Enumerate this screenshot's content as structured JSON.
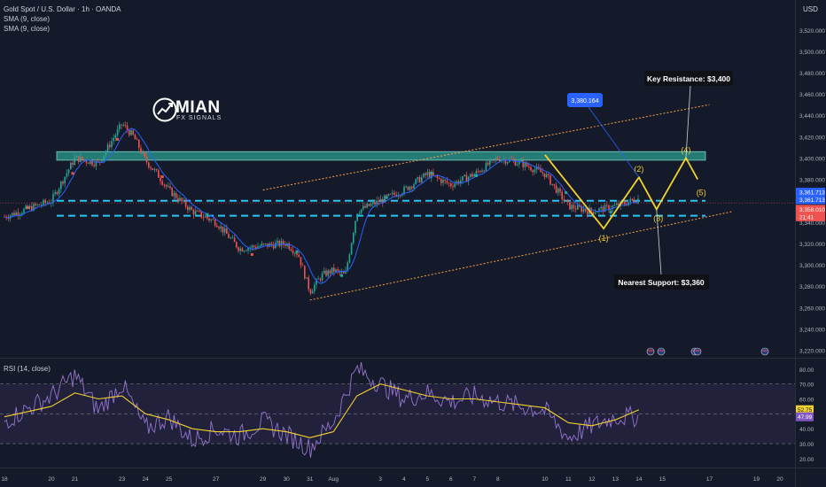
{
  "header": {
    "symbol": "Gold Spot / U.S. Dollar · 1h · OANDA",
    "indicators": [
      "SMA (9, close)",
      "SMA (9, close)"
    ],
    "rsi_label": "RSI (14, close)",
    "currency": "USD"
  },
  "logo": {
    "main": "MIAN",
    "sub": "FX SIGNALS"
  },
  "colors": {
    "background": "#151a2a",
    "up_candle": "#26a69a",
    "down_candle": "#ef5350",
    "sma": "#2962ff",
    "resistance_zone": "#2a9d8f",
    "support_dash": "#29c5f6",
    "channel": "#f5a04a",
    "wave": "#f2d22e",
    "rsi_line": "#9575cd",
    "rsi_ma": "#f2d22e"
  },
  "annotations": {
    "key_resistance": "Key Resistance: $3,400",
    "nearest_support": "Nearest Support: $3,360",
    "price_tag": "3,380.164",
    "waves": [
      "(1)",
      "(2)",
      "(3)",
      "(4)",
      "(5)"
    ]
  },
  "price_badges": [
    "3,361.713",
    "3,361.713",
    "3,358.010",
    "21:41"
  ],
  "rsi_badges": [
    "52.75",
    "47.99"
  ],
  "chart_data": [
    {
      "type": "candlestick",
      "title": "Gold Spot / U.S. Dollar · 1h · OANDA",
      "ylabel": "USD",
      "ylim": [
        3213,
        3548
      ],
      "y_ticks": [
        3520,
        3500,
        3480,
        3460,
        3440,
        3420,
        3400,
        3380,
        3360,
        3340,
        3320,
        3300,
        3280,
        3260,
        3240,
        3220
      ],
      "y_tick_labels": [
        "3,520.000",
        "3,500.000",
        "3,480.000",
        "3,460.000",
        "3,440.000",
        "3,420.000",
        "3,400.000",
        "3,380.000",
        "3,360.000",
        "3,340.000",
        "3,320.000",
        "3,300.000",
        "3,280.000",
        "3,260.000",
        "3,240.000",
        "3,220.000"
      ],
      "x_tick_labels": [
        "18",
        "20",
        "21",
        "23",
        "24",
        "25",
        "27",
        "29",
        "30",
        "31",
        "Aug",
        "3",
        "4",
        "5",
        "6",
        "7",
        "8",
        "10",
        "11",
        "12",
        "13",
        "14",
        "15",
        "17",
        "19",
        "20"
      ],
      "x_tick_dates": [
        "Jul 18",
        "Jul 20",
        "Jul 21",
        "Jul 23",
        "Jul 24",
        "Jul 25",
        "Jul 27",
        "Jul 29",
        "Jul 30",
        "Jul 31",
        "Aug 1",
        "Aug 3",
        "Aug 4",
        "Aug 5",
        "Aug 6",
        "Aug 7",
        "Aug 8",
        "Aug 10",
        "Aug 11",
        "Aug 12",
        "Aug 13",
        "Aug 14",
        "Aug 15",
        "Aug 17",
        "Aug 19",
        "Aug 20"
      ],
      "price_path": [
        [
          "Jul 18",
          3345
        ],
        [
          "Jul 20",
          3360
        ],
        [
          "Jul 21",
          3400
        ],
        [
          "Jul 22",
          3395
        ],
        [
          "Jul 23",
          3432
        ],
        [
          "Jul 23 12:00",
          3420
        ],
        [
          "Jul 24",
          3398
        ],
        [
          "Jul 24 12:00",
          3385
        ],
        [
          "Jul 25",
          3370
        ],
        [
          "Jul 26",
          3350
        ],
        [
          "Jul 27",
          3340
        ],
        [
          "Jul 28",
          3315
        ],
        [
          "Jul 29",
          3318
        ],
        [
          "Jul 30",
          3320
        ],
        [
          "Jul 30 12:00",
          3310
        ],
        [
          "Jul 31",
          3275
        ],
        [
          "Jul 31 12:00",
          3290
        ],
        [
          "Aug 1",
          3295
        ],
        [
          "Aug 1 12:00",
          3290
        ],
        [
          "Aug 2",
          3350
        ],
        [
          "Aug 3",
          3360
        ],
        [
          "Aug 4",
          3370
        ],
        [
          "Aug 5",
          3385
        ],
        [
          "Aug 6",
          3375
        ],
        [
          "Aug 7",
          3385
        ],
        [
          "Aug 8",
          3400
        ],
        [
          "Aug 9",
          3395
        ],
        [
          "Aug 10",
          3385
        ],
        [
          "Aug 11",
          3355
        ],
        [
          "Aug 12",
          3350
        ],
        [
          "Aug 13",
          3355
        ],
        [
          "Aug 14",
          3362
        ]
      ],
      "resistance_zone": [
        3398,
        3406
      ],
      "support_lines": [
        3360,
        3346
      ],
      "current_price": 3358.01,
      "current_price_badge": "3,358.010",
      "last_close_badges": [
        "3,361.713",
        "3,361.713"
      ],
      "countdown": "21:41",
      "wave_path": [
        {
          "label": "",
          "x": "Aug 10",
          "y": 3403
        },
        {
          "label": "(1)",
          "x": "Aug 12 12:00",
          "y": 3334
        },
        {
          "label": "(2)",
          "x": "Aug 14",
          "y": 3382
        },
        {
          "label": "(3)",
          "x": "Aug 14 18:00",
          "y": 3352
        },
        {
          "label": "(4)",
          "x": "Aug 16",
          "y": 3400
        },
        {
          "label": "(5)",
          "x": "Aug 16 12:00",
          "y": 3380
        }
      ],
      "channel_upper": [
        [
          "Jul 29",
          3370
        ],
        [
          "Aug 17",
          3450
        ]
      ],
      "channel_lower": [
        [
          "Jul 31",
          3267
        ],
        [
          "Aug 18",
          3350
        ]
      ],
      "annotations": [
        {
          "text": "Key Resistance: $3,400",
          "x": "Aug 16",
          "y": 3400
        },
        {
          "text": "Nearest Support: $3,360",
          "x": "Aug 14 18:00",
          "y": 3360
        },
        {
          "text": "3,380.164",
          "x": "Aug 14",
          "y": 3382
        }
      ]
    },
    {
      "type": "line",
      "title": "RSI (14, close)",
      "ylim": [
        14,
        87
      ],
      "y_ticks": [
        80,
        70,
        60,
        50,
        40,
        30,
        20
      ],
      "y_tick_labels": [
        "80.00",
        "70.00",
        "60.00",
        "50.00",
        "40.00",
        "30.00",
        "20.00"
      ],
      "bands": [
        70,
        50,
        30
      ],
      "series": [
        {
          "values": [
            [
              "Jul 18",
              45
            ],
            [
              "Jul 20",
              62
            ],
            [
              "Jul 21",
              76
            ],
            [
              "Jul 22",
              52
            ],
            [
              "Jul 23",
              70
            ],
            [
              "Jul 24",
              40
            ],
            [
              "Jul 25",
              48
            ],
            [
              "Jul 26",
              32
            ],
            [
              "Jul 27",
              40
            ],
            [
              "Jul 28",
              35
            ],
            [
              "Jul 29",
              45
            ],
            [
              "Jul 30",
              36
            ],
            [
              "Jul 31",
              27
            ],
            [
              "Aug 1",
              45
            ],
            [
              "Aug 2",
              80
            ],
            [
              "Aug 3",
              70
            ],
            [
              "Aug 4",
              60
            ],
            [
              "Aug 5",
              64
            ],
            [
              "Aug 6",
              58
            ],
            [
              "Aug 7",
              62
            ],
            [
              "Aug 8",
              58
            ],
            [
              "Aug 9",
              55
            ],
            [
              "Aug 10",
              52
            ],
            [
              "Aug 11",
              34
            ],
            [
              "Aug 12",
              42
            ],
            [
              "Aug 13",
              48
            ],
            [
              "Aug 14",
              47.99
            ]
          ]
        },
        {
          "values": [
            [
              "Jul 18",
              48
            ],
            [
              "Jul 20",
              55
            ],
            [
              "Jul 21",
              64
            ],
            [
              "Jul 22",
              60
            ],
            [
              "Jul 23",
              62
            ],
            [
              "Jul 24",
              50
            ],
            [
              "Jul 25",
              46
            ],
            [
              "Jul 26",
              40
            ],
            [
              "Jul 27",
              38
            ],
            [
              "Jul 28",
              38
            ],
            [
              "Jul 29",
              40
            ],
            [
              "Jul 30",
              38
            ],
            [
              "Jul 31",
              34
            ],
            [
              "Aug 1",
              38
            ],
            [
              "Aug 2",
              62
            ],
            [
              "Aug 3",
              70
            ],
            [
              "Aug 4",
              66
            ],
            [
              "Aug 5",
              62
            ],
            [
              "Aug 6",
              60
            ],
            [
              "Aug 7",
              60
            ],
            [
              "Aug 8",
              58
            ],
            [
              "Aug 9",
              56
            ],
            [
              "Aug 10",
              54
            ],
            [
              "Aug 11",
              44
            ],
            [
              "Aug 12",
              42
            ],
            [
              "Aug 13",
              46
            ],
            [
              "Aug 14",
              52.75
            ]
          ]
        }
      ],
      "current_values_badges": [
        "52.75",
        "47.99"
      ]
    }
  ]
}
